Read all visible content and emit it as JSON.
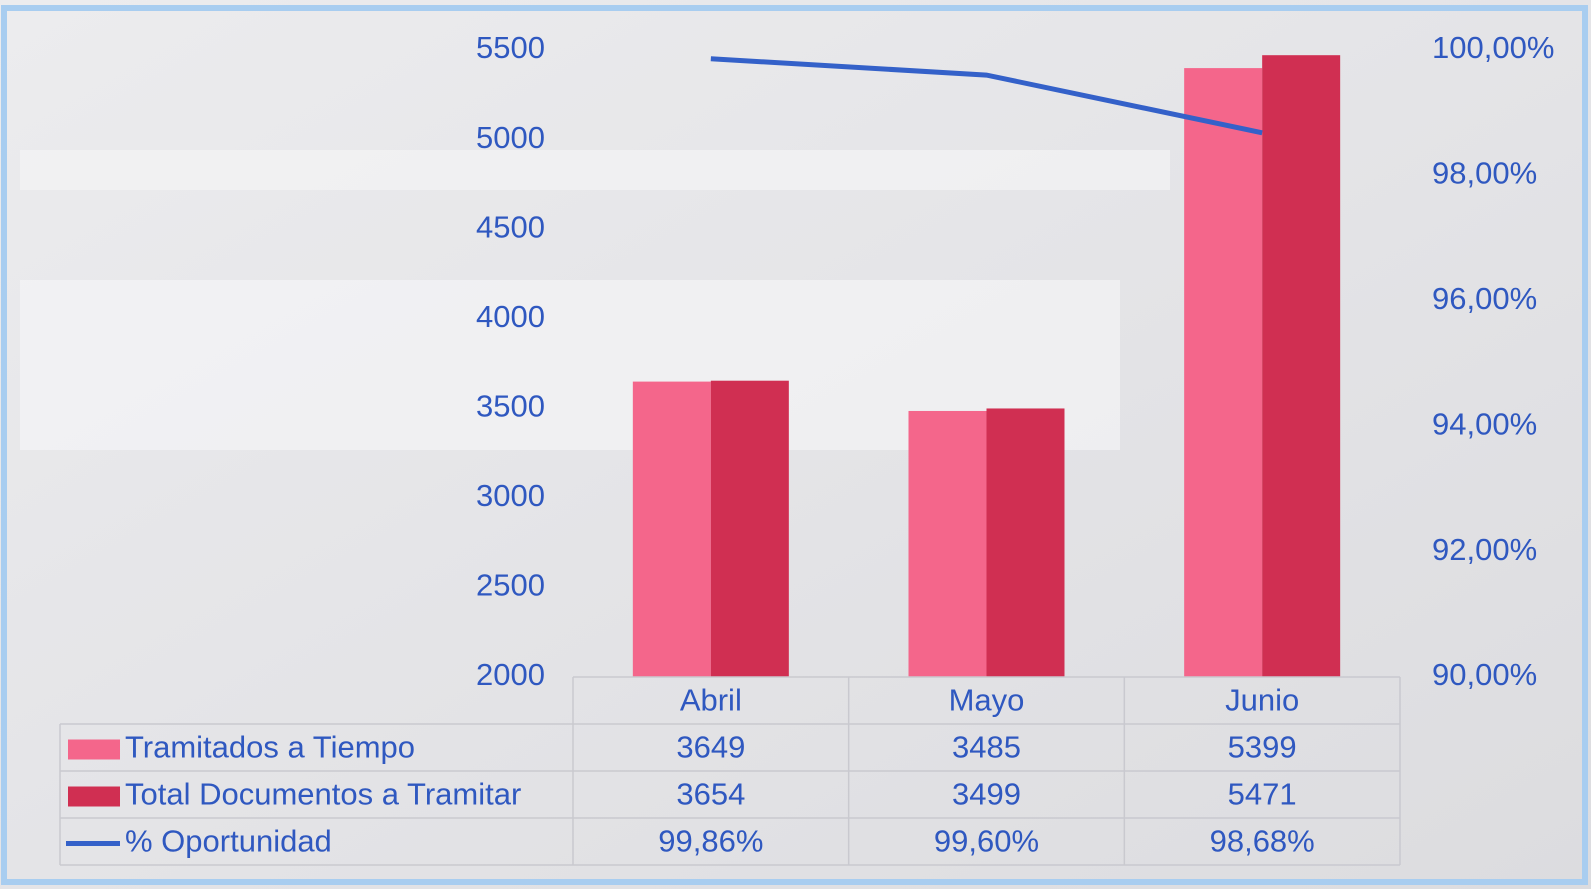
{
  "chart_data": {
    "type": "bar",
    "categories": [
      "Abril",
      "Mayo",
      "Junio"
    ],
    "series": [
      {
        "name": "Tramitados a Tiempo",
        "color": "#f4668b",
        "values": [
          3649,
          3485,
          5399
        ]
      },
      {
        "name": "Total Documentos a Tramitar",
        "color": "#d02f52",
        "values": [
          3654,
          3499,
          5471
        ]
      },
      {
        "name": "% Oportunidad",
        "color": "#3461c9",
        "type": "line",
        "axis": "y2",
        "values": [
          99.86,
          99.6,
          98.68
        ],
        "value_labels": [
          "99,86%",
          "99,60%",
          "98,68%"
        ]
      }
    ],
    "ylim": [
      2000,
      5500
    ],
    "yticks": [
      2000,
      2500,
      3000,
      3500,
      4000,
      4500,
      5000,
      5500
    ],
    "y2lim": [
      90,
      100
    ],
    "y2ticks": [
      {
        "value": 90,
        "label": "90,00%"
      },
      {
        "value": 92,
        "label": "92,00%"
      },
      {
        "value": 94,
        "label": "94,00%"
      },
      {
        "value": 96,
        "label": "96,00%"
      },
      {
        "value": 98,
        "label": "98,00%"
      },
      {
        "value": 100,
        "label": "100,00%"
      }
    ],
    "grid": false
  }
}
